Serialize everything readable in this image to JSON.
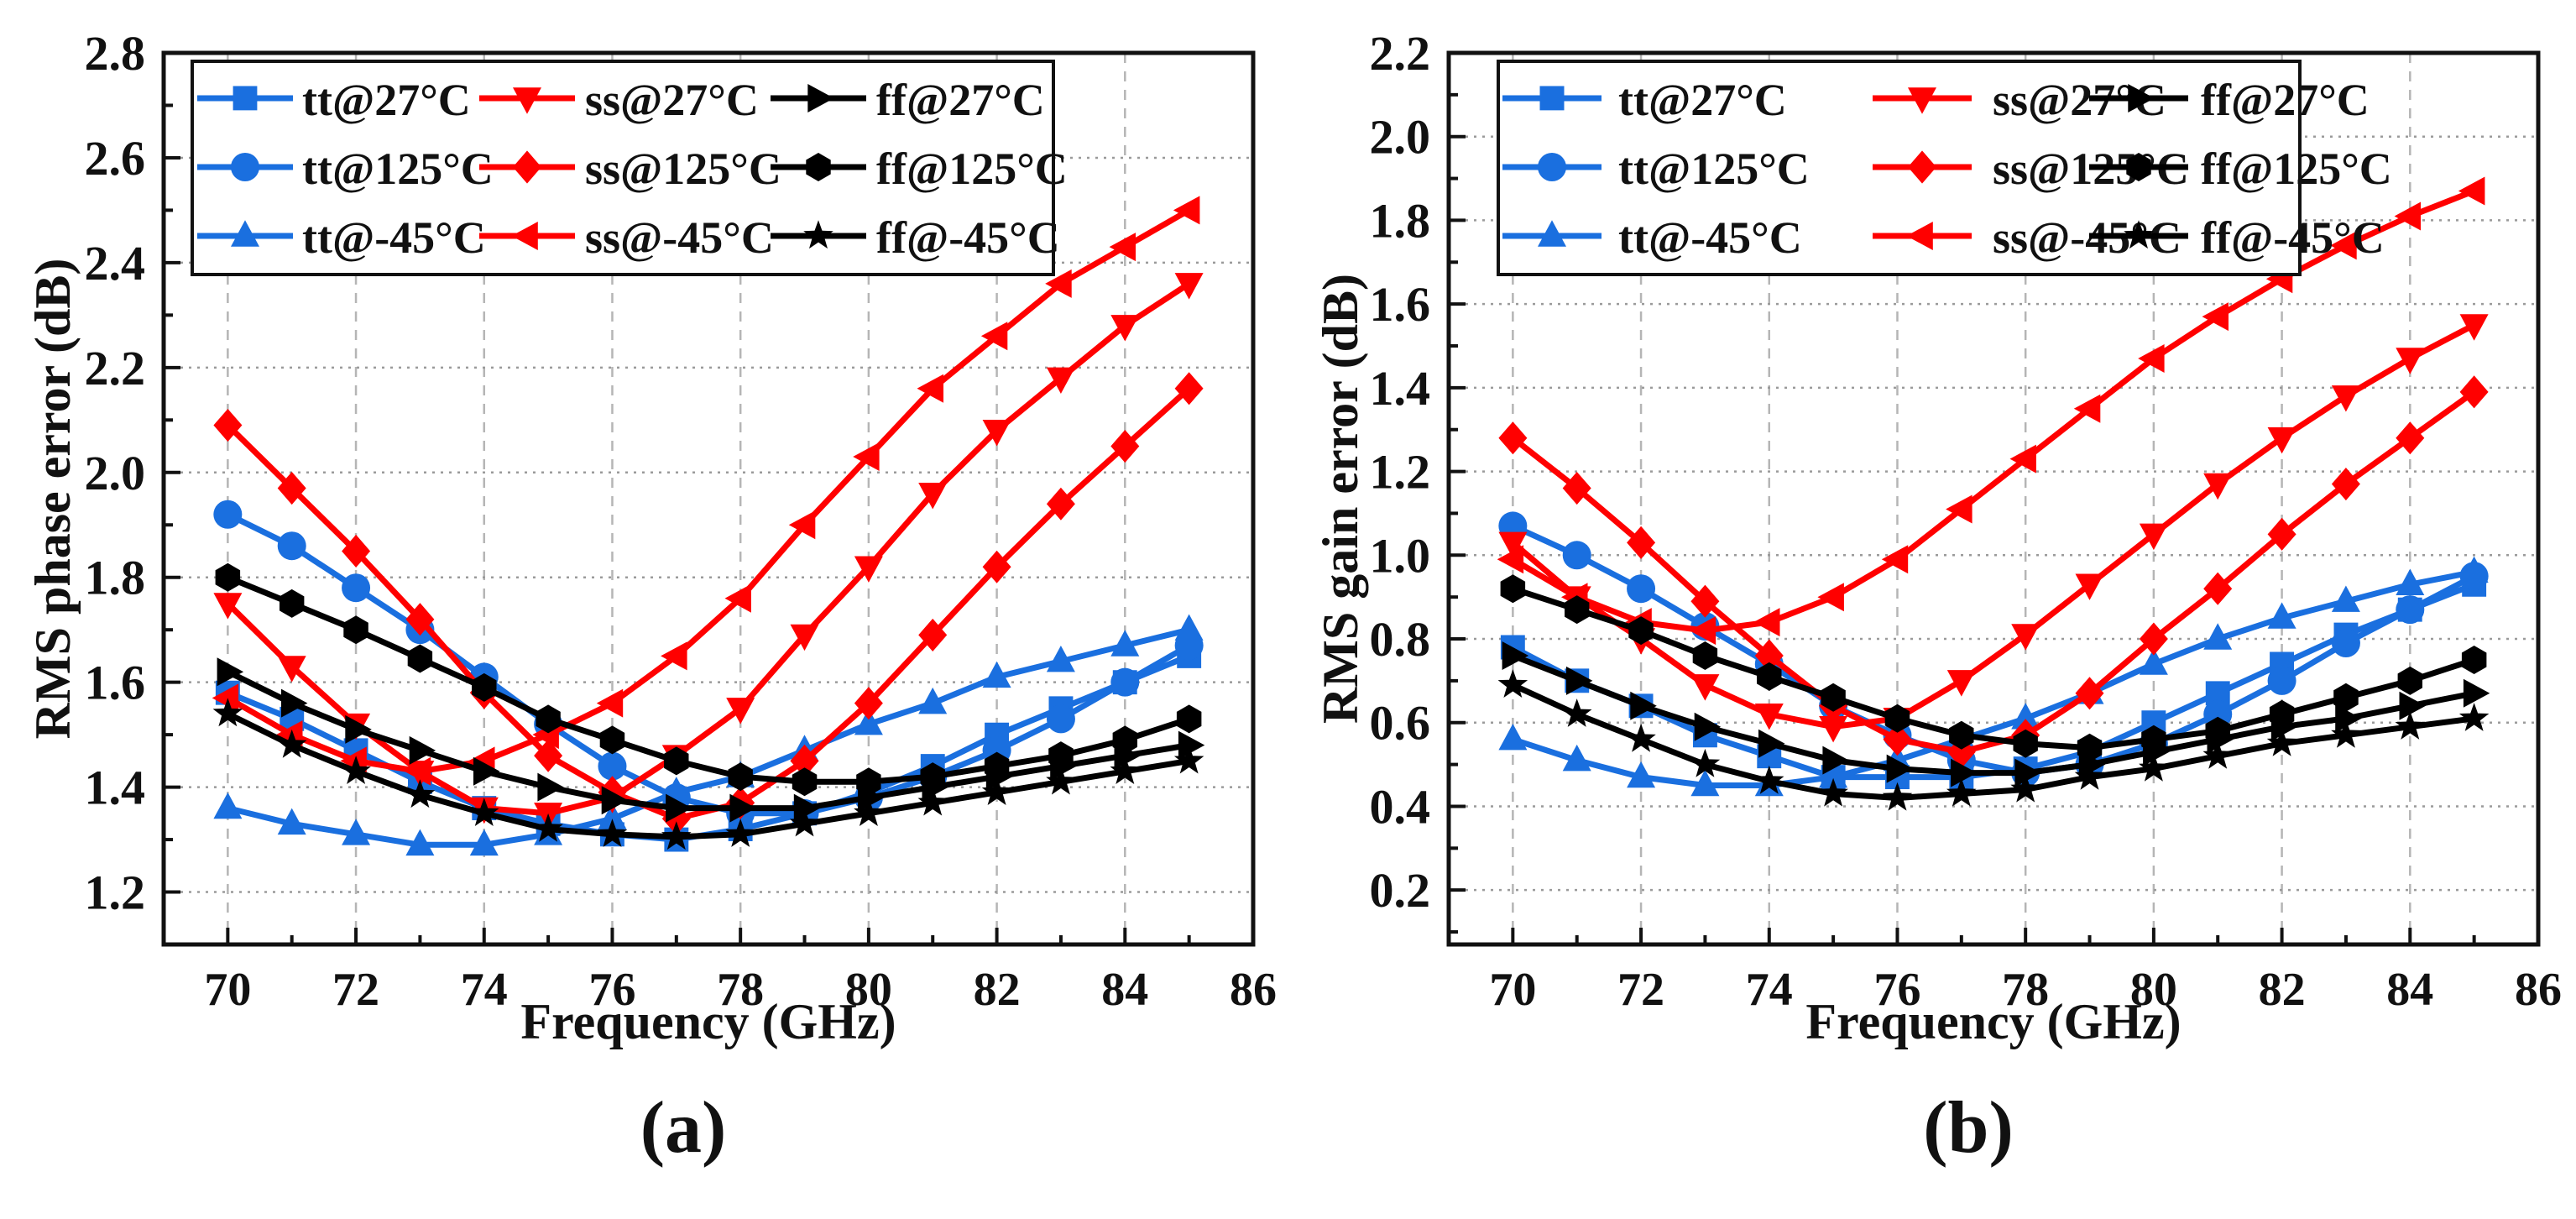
{
  "colors": {
    "tt": "#1a6fdf",
    "ss": "#ff0000",
    "ff": "#000000"
  },
  "chart_data": [
    {
      "type": "line",
      "panel_label": "(a)",
      "xlabel": "Frequency (GHz)",
      "ylabel": "RMS phase error (dB)",
      "xlim": [
        69,
        86
      ],
      "ylim": [
        1.1,
        2.8
      ],
      "xticks": [
        70,
        72,
        74,
        76,
        78,
        80,
        82,
        84,
        86
      ],
      "yticks": [
        1.2,
        1.4,
        1.6,
        1.8,
        2.0,
        2.2,
        2.4,
        2.6,
        2.8
      ],
      "xtick_labels": [
        "70",
        "72",
        "74",
        "76",
        "78",
        "80",
        "82",
        "84",
        "86"
      ],
      "ytick_labels": [
        "1.2",
        "1.4",
        "1.6",
        "1.8",
        "2.0",
        "2.2",
        "2.4",
        "2.6",
        "2.8"
      ],
      "grid": true,
      "legend_position": "top-left",
      "x": [
        70,
        71,
        72,
        73,
        74,
        75,
        76,
        77,
        78,
        79,
        80,
        81,
        82,
        83,
        84,
        85
      ],
      "series": [
        {
          "name": "tt@27°C",
          "group": "tt",
          "marker": "square",
          "values": [
            1.58,
            1.53,
            1.47,
            1.41,
            1.36,
            1.33,
            1.31,
            1.3,
            1.32,
            1.35,
            1.39,
            1.44,
            1.5,
            1.55,
            1.6,
            1.65
          ]
        },
        {
          "name": "tt@125°C",
          "group": "tt",
          "marker": "circle",
          "values": [
            1.92,
            1.86,
            1.78,
            1.7,
            1.61,
            1.52,
            1.44,
            1.38,
            1.35,
            1.35,
            1.38,
            1.42,
            1.47,
            1.53,
            1.6,
            1.67
          ]
        },
        {
          "name": "tt@-45°C",
          "group": "tt",
          "marker": "triangle-up",
          "values": [
            1.36,
            1.33,
            1.31,
            1.29,
            1.29,
            1.31,
            1.34,
            1.39,
            1.42,
            1.47,
            1.52,
            1.56,
            1.61,
            1.64,
            1.67,
            1.7
          ]
        },
        {
          "name": "ss@27°C",
          "group": "ss",
          "marker": "triangle-down",
          "values": [
            1.75,
            1.63,
            1.52,
            1.43,
            1.36,
            1.35,
            1.38,
            1.46,
            1.55,
            1.69,
            1.82,
            1.96,
            2.08,
            2.18,
            2.28,
            2.36
          ]
        },
        {
          "name": "ss@125°C",
          "group": "ss",
          "marker": "diamond",
          "values": [
            2.09,
            1.97,
            1.85,
            1.72,
            1.58,
            1.46,
            1.39,
            1.34,
            1.37,
            1.45,
            1.56,
            1.69,
            1.82,
            1.94,
            2.05,
            2.16
          ]
        },
        {
          "name": "ss@-45°C",
          "group": "ss",
          "marker": "triangle-left",
          "values": [
            1.57,
            1.5,
            1.45,
            1.43,
            1.45,
            1.5,
            1.56,
            1.65,
            1.76,
            1.9,
            2.03,
            2.16,
            2.26,
            2.36,
            2.43,
            2.5
          ]
        },
        {
          "name": "ff@27°C",
          "group": "ff",
          "marker": "triangle-right",
          "values": [
            1.62,
            1.56,
            1.51,
            1.47,
            1.43,
            1.4,
            1.375,
            1.36,
            1.36,
            1.36,
            1.38,
            1.4,
            1.42,
            1.44,
            1.46,
            1.48
          ]
        },
        {
          "name": "ff@125°C",
          "group": "ff",
          "marker": "hexagon",
          "values": [
            1.8,
            1.75,
            1.7,
            1.645,
            1.59,
            1.53,
            1.49,
            1.45,
            1.42,
            1.41,
            1.41,
            1.42,
            1.44,
            1.46,
            1.49,
            1.53
          ]
        },
        {
          "name": "ff@-45°C",
          "group": "ff",
          "marker": "star",
          "values": [
            1.54,
            1.48,
            1.43,
            1.385,
            1.35,
            1.32,
            1.31,
            1.305,
            1.31,
            1.33,
            1.35,
            1.37,
            1.39,
            1.41,
            1.43,
            1.45
          ]
        }
      ]
    },
    {
      "type": "line",
      "panel_label": "(b)",
      "xlabel": "Frequency (GHz)",
      "ylabel": "RMS gain error (dB)",
      "xlim": [
        69,
        86
      ],
      "ylim": [
        0.07,
        2.2
      ],
      "xticks": [
        70,
        72,
        74,
        76,
        78,
        80,
        82,
        84,
        86
      ],
      "yticks": [
        0.2,
        0.4,
        0.6,
        0.8,
        1.0,
        1.2,
        1.4,
        1.6,
        1.8,
        2.0,
        2.2
      ],
      "xtick_labels": [
        "70",
        "72",
        "74",
        "76",
        "78",
        "80",
        "82",
        "84",
        "86"
      ],
      "ytick_labels": [
        "0.2",
        "0.4",
        "0.6",
        "0.8",
        "1.0",
        "1.2",
        "1.4",
        "1.6",
        "1.8",
        "2.0",
        "2.2"
      ],
      "grid": true,
      "legend_position": "top-left",
      "x": [
        70,
        71,
        72,
        73,
        74,
        75,
        76,
        77,
        78,
        79,
        80,
        81,
        82,
        83,
        84,
        85
      ],
      "series": [
        {
          "name": "tt@27°C",
          "group": "tt",
          "marker": "square",
          "values": [
            0.78,
            0.7,
            0.64,
            0.57,
            0.52,
            0.47,
            0.47,
            0.47,
            0.49,
            0.53,
            0.6,
            0.67,
            0.74,
            0.81,
            0.87,
            0.93
          ]
        },
        {
          "name": "tt@125°C",
          "group": "tt",
          "marker": "circle",
          "values": [
            1.07,
            1.0,
            0.92,
            0.83,
            0.74,
            0.64,
            0.57,
            0.51,
            0.48,
            0.5,
            0.55,
            0.62,
            0.7,
            0.79,
            0.87,
            0.95
          ]
        },
        {
          "name": "tt@-45°C",
          "group": "tt",
          "marker": "triangle-up",
          "values": [
            0.56,
            0.51,
            0.47,
            0.45,
            0.45,
            0.47,
            0.51,
            0.56,
            0.61,
            0.67,
            0.74,
            0.8,
            0.85,
            0.89,
            0.93,
            0.96
          ]
        },
        {
          "name": "ss@27°C",
          "group": "ss",
          "marker": "triangle-down",
          "values": [
            1.03,
            0.9,
            0.8,
            0.69,
            0.62,
            0.59,
            0.61,
            0.7,
            0.81,
            0.93,
            1.05,
            1.17,
            1.28,
            1.38,
            1.47,
            1.55
          ]
        },
        {
          "name": "ss@125°C",
          "group": "ss",
          "marker": "diamond",
          "values": [
            1.28,
            1.16,
            1.03,
            0.89,
            0.76,
            0.64,
            0.56,
            0.53,
            0.57,
            0.67,
            0.8,
            0.92,
            1.05,
            1.17,
            1.28,
            1.39
          ]
        },
        {
          "name": "ss@-45°C",
          "group": "ss",
          "marker": "triangle-left",
          "values": [
            0.99,
            0.9,
            0.84,
            0.82,
            0.84,
            0.9,
            0.99,
            1.11,
            1.23,
            1.35,
            1.47,
            1.57,
            1.66,
            1.74,
            1.81,
            1.87
          ]
        },
        {
          "name": "ff@27°C",
          "group": "ff",
          "marker": "triangle-right",
          "values": [
            0.76,
            0.7,
            0.64,
            0.59,
            0.55,
            0.51,
            0.49,
            0.48,
            0.48,
            0.5,
            0.53,
            0.56,
            0.59,
            0.61,
            0.64,
            0.67
          ]
        },
        {
          "name": "ff@125°C",
          "group": "ff",
          "marker": "hexagon",
          "values": [
            0.92,
            0.87,
            0.82,
            0.76,
            0.71,
            0.66,
            0.61,
            0.57,
            0.55,
            0.54,
            0.56,
            0.58,
            0.62,
            0.66,
            0.7,
            0.75
          ]
        },
        {
          "name": "ff@-45°C",
          "group": "ff",
          "marker": "star",
          "values": [
            0.69,
            0.62,
            0.56,
            0.5,
            0.46,
            0.43,
            0.42,
            0.43,
            0.44,
            0.47,
            0.49,
            0.52,
            0.55,
            0.57,
            0.59,
            0.61
          ]
        }
      ]
    }
  ]
}
